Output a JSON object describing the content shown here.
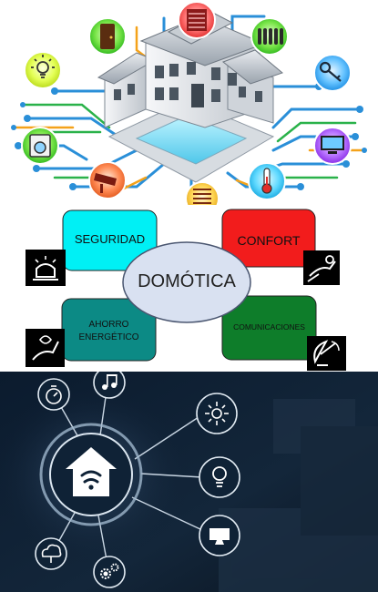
{
  "diagram": {
    "center": "DOMÓTICA",
    "categories": [
      {
        "id": "seguridad",
        "label": "SEGURIDAD",
        "color": "#00f0f5",
        "icon": "alarm-light-icon"
      },
      {
        "id": "confort",
        "label": "CONFORT",
        "color": "#f21c1c",
        "icon": "relax-hand-icon"
      },
      {
        "id": "ahorro",
        "label": "AHORRO ENERGÉTICO",
        "label_line1": "AHORRO",
        "label_line2": "ENERGÉTICO",
        "color": "#0c8a85",
        "icon": "energy-hand-icon"
      },
      {
        "id": "comunicaciones",
        "label": "COMUNICACIONES",
        "color": "#0e7d2a",
        "icon": "satellite-dish-icon"
      }
    ]
  },
  "house_illustration": {
    "nodes": [
      {
        "icon": "door-icon",
        "color": "#3ad43a"
      },
      {
        "icon": "window-blinds-icon",
        "color": "#ff4a4a"
      },
      {
        "icon": "radiator-icon",
        "color": "#37d62a"
      },
      {
        "icon": "light-bulb-icon",
        "color": "#d7ff22"
      },
      {
        "icon": "key-icon",
        "color": "#2aa6ff"
      },
      {
        "icon": "washing-machine-icon",
        "color": "#39dd2a"
      },
      {
        "icon": "computer-icon",
        "color": "#a23bff"
      },
      {
        "icon": "security-camera-icon",
        "color": "#ff5e2a"
      },
      {
        "icon": "thermometer-icon",
        "color": "#30c8ff"
      },
      {
        "icon": "shutter-icon",
        "color": "#ffcc22"
      }
    ]
  },
  "smart_home": {
    "hub_icon": "smart-home-wifi-icon",
    "nodes": [
      "timer-icon",
      "music-note-icon",
      "sun-snow-icon",
      "light-bulb-icon",
      "monitor-icon",
      "cloud-icon",
      "gears-icon"
    ]
  }
}
